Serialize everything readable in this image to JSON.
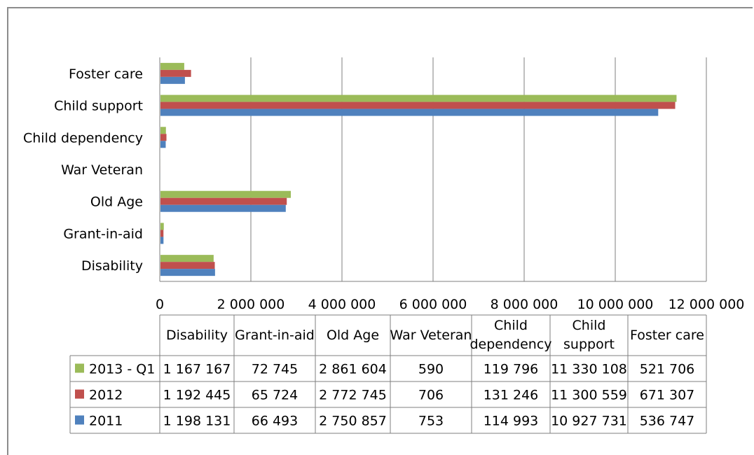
{
  "chart_data": {
    "type": "bar",
    "orientation": "horizontal",
    "categories": [
      "Disability",
      "Grant-in-aid",
      "Old Age",
      "War Veteran",
      "Child dependency",
      "Child support",
      "Foster care"
    ],
    "table_headers": [
      [
        "Disability"
      ],
      [
        "Grant-in-aid"
      ],
      [
        "Old Age"
      ],
      [
        "War Veteran"
      ],
      [
        "Child",
        "dependency"
      ],
      [
        "Child",
        "support"
      ],
      [
        "Foster care"
      ]
    ],
    "series": [
      {
        "name": "2013 - Q1",
        "color": "#9bbb59",
        "values": [
          1167167,
          72745,
          2861604,
          590,
          119796,
          11330108,
          521706
        ],
        "labels": [
          "1 167 167",
          "72 745",
          "2 861 604",
          "590",
          "119 796",
          "11 330 108",
          "521 706"
        ]
      },
      {
        "name": "2012",
        "color": "#c0504d",
        "values": [
          1192445,
          65724,
          2772745,
          706,
          131246,
          11300559,
          671307
        ],
        "labels": [
          "1 192 445",
          "65 724",
          "2 772 745",
          "706",
          "131 246",
          "11 300 559",
          "671 307"
        ]
      },
      {
        "name": "2011",
        "color": "#4f81bd",
        "values": [
          1198131,
          66493,
          2750857,
          753,
          114993,
          10927731,
          536747
        ],
        "labels": [
          "1 198 131",
          "66 493",
          "2 750 857",
          "753",
          "114 993",
          "10 927 731",
          "536 747"
        ]
      }
    ],
    "xlim": [
      0,
      12000000
    ],
    "x_ticks": [
      0,
      2000000,
      4000000,
      6000000,
      8000000,
      10000000,
      12000000
    ],
    "x_tick_labels": [
      "0",
      "2 000 000",
      "4 000 000",
      "6 000 000",
      "8 000 000",
      "10 000 000",
      "12 000 000"
    ],
    "grid": true,
    "legend": "data-table"
  }
}
